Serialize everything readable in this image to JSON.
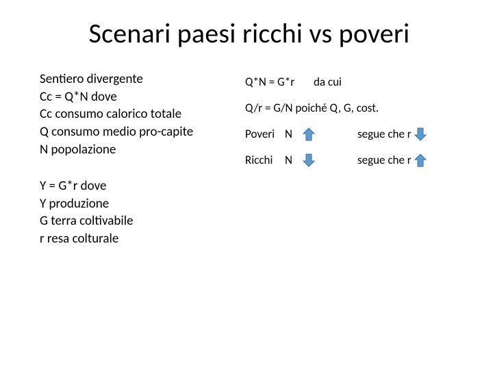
{
  "title": "Scenari paesi ricchi vs poveri",
  "left": {
    "block1": [
      "Sentiero divergente",
      "Cc = Q*N   dove",
      "Cc consumo calorico totale",
      "Q  consumo medio pro-capite",
      "N   popolazione"
    ],
    "block2": [
      "Y = G*r    dove",
      "Y  produzione",
      "G terra coltivabile",
      "r resa colturale"
    ]
  },
  "right": {
    "line1_eq": "Q*N = G*r",
    "line1_after": "da cui",
    "line2": "Q/r  = G/N  poiché Q, G,  cost.",
    "rows": [
      {
        "label": "Poveri",
        "n": "N",
        "arrow1_dir": "up",
        "segue": "segue che   r",
        "arrow2_dir": "down"
      },
      {
        "label": "Ricchi",
        "n": "N",
        "arrow1_dir": "down",
        "segue": "segue che   r",
        "arrow2_dir": "up"
      }
    ]
  },
  "style": {
    "arrow_fill": "#5b9bd5",
    "arrow_stroke": "#41719c",
    "arrow_width": 18,
    "arrow_height": 20,
    "background": "#ffffff",
    "text_color": "#000000",
    "title_fontsize": 40,
    "left_fontsize": 19,
    "right_fontsize": 17
  }
}
